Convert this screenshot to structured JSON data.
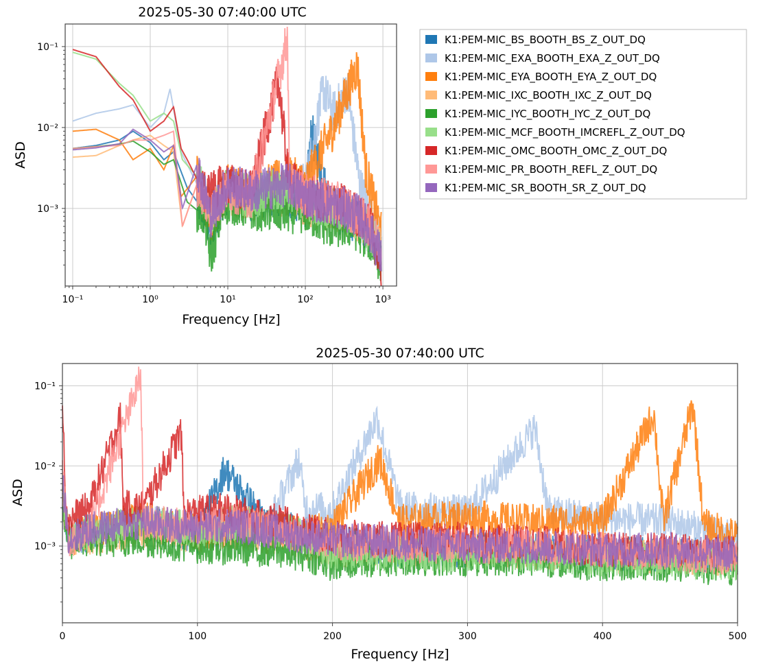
{
  "chart_data": [
    {
      "type": "line",
      "title": "2025-05-30 07:40:00 UTC",
      "xlabel": "Frequency [Hz]",
      "ylabel": "ASD",
      "xscale": "log",
      "yscale": "log",
      "xlim": [
        0.08,
        1500
      ],
      "ylim": [
        0.00011,
        0.19
      ],
      "xticks": [
        {
          "v": 0.1,
          "label": "10⁻¹"
        },
        {
          "v": 1,
          "label": "10⁰"
        },
        {
          "v": 10,
          "label": "10¹"
        },
        {
          "v": 100,
          "label": "10²"
        },
        {
          "v": 1000,
          "label": "10³"
        }
      ],
      "yticks": [
        {
          "v": 0.1,
          "label": "10⁻¹"
        },
        {
          "v": 0.01,
          "label": "10⁻²"
        },
        {
          "v": 0.001,
          "label": "10⁻³"
        }
      ],
      "grid": true,
      "legend": "right, outside",
      "series_ref": "shared_series"
    },
    {
      "type": "line",
      "title": "2025-05-30 07:40:00 UTC",
      "xlabel": "Frequency [Hz]",
      "ylabel": "ASD",
      "xscale": "linear",
      "yscale": "log",
      "xlim": [
        0,
        500
      ],
      "ylim": [
        0.00011,
        0.19
      ],
      "xticks": [
        {
          "v": 0,
          "label": "0"
        },
        {
          "v": 100,
          "label": "100"
        },
        {
          "v": 200,
          "label": "200"
        },
        {
          "v": 300,
          "label": "300"
        },
        {
          "v": 400,
          "label": "400"
        },
        {
          "v": 500,
          "label": "500"
        }
      ],
      "yticks": [
        {
          "v": 0.1,
          "label": "10⁻¹"
        },
        {
          "v": 0.01,
          "label": "10⁻²"
        },
        {
          "v": 0.001,
          "label": "10⁻³"
        }
      ],
      "grid": true,
      "series_ref": "shared_series"
    }
  ],
  "shared_series": [
    {
      "name": "K1:PEM-MIC_BS_BOOTH_BS_Z_OUT_DQ",
      "color": "#1f77b4",
      "pts": [
        [
          0.1,
          0.0055
        ],
        [
          0.2,
          0.006
        ],
        [
          0.4,
          0.007
        ],
        [
          0.6,
          0.009
        ],
        [
          1,
          0.0065
        ],
        [
          1.5,
          0.004
        ],
        [
          2,
          0.005
        ],
        [
          3,
          0.0018
        ],
        [
          5,
          0.0009
        ],
        [
          6,
          0.0005
        ],
        [
          8,
          0.0012
        ],
        [
          10,
          0.0016
        ],
        [
          20,
          0.0013
        ],
        [
          40,
          0.0015
        ],
        [
          60,
          0.0014
        ],
        [
          100,
          0.0011
        ],
        [
          120,
          0.009
        ],
        [
          200,
          0.0012
        ],
        [
          300,
          0.0008
        ],
        [
          500,
          0.0007
        ],
        [
          700,
          0.0005
        ],
        [
          950,
          0.0003
        ]
      ],
      "lin": [
        [
          0,
          0.004
        ],
        [
          5,
          0.0012
        ],
        [
          20,
          0.0015
        ],
        [
          60,
          0.002
        ],
        [
          100,
          0.0013
        ],
        [
          120,
          0.009
        ],
        [
          150,
          0.002
        ],
        [
          200,
          0.0011
        ],
        [
          250,
          0.0009
        ],
        [
          300,
          0.0009
        ],
        [
          350,
          0.0009
        ],
        [
          400,
          0.0008
        ],
        [
          450,
          0.0008
        ],
        [
          500,
          0.0007
        ]
      ]
    },
    {
      "name": "K1:PEM-MIC_EXA_BOOTH_EXA_Z_OUT_DQ",
      "color": "#aec7e8",
      "pts": [
        [
          0.1,
          0.012
        ],
        [
          0.2,
          0.015
        ],
        [
          0.4,
          0.017
        ],
        [
          0.6,
          0.019
        ],
        [
          1,
          0.01
        ],
        [
          1.5,
          0.015
        ],
        [
          1.8,
          0.03
        ],
        [
          2.5,
          0.005
        ],
        [
          4,
          0.002
        ],
        [
          6,
          0.0008
        ],
        [
          10,
          0.0018
        ],
        [
          20,
          0.0014
        ],
        [
          60,
          0.002
        ],
        [
          100,
          0.002
        ],
        [
          170,
          0.03
        ],
        [
          230,
          0.015
        ],
        [
          350,
          0.03
        ],
        [
          500,
          0.002
        ],
        [
          700,
          0.0008
        ],
        [
          950,
          0.0004
        ]
      ],
      "lin": [
        [
          0,
          0.003
        ],
        [
          5,
          0.0012
        ],
        [
          20,
          0.0014
        ],
        [
          60,
          0.002
        ],
        [
          100,
          0.0015
        ],
        [
          150,
          0.0015
        ],
        [
          175,
          0.012
        ],
        [
          180,
          0.003
        ],
        [
          200,
          0.0028
        ],
        [
          233,
          0.04
        ],
        [
          250,
          0.003
        ],
        [
          300,
          0.0026
        ],
        [
          350,
          0.03
        ],
        [
          360,
          0.0026
        ],
        [
          400,
          0.0022
        ],
        [
          450,
          0.002
        ],
        [
          500,
          0.0012
        ]
      ]
    },
    {
      "name": "K1:PEM-MIC_EYA_BOOTH_EYA_Z_OUT_DQ",
      "color": "#ff7f0e",
      "pts": [
        [
          0.1,
          0.009
        ],
        [
          0.2,
          0.0095
        ],
        [
          0.4,
          0.007
        ],
        [
          0.6,
          0.004
        ],
        [
          1,
          0.0055
        ],
        [
          1.5,
          0.003
        ],
        [
          2,
          0.006
        ],
        [
          2.5,
          0.0014
        ],
        [
          4,
          0.0025
        ],
        [
          6,
          0.0006
        ],
        [
          10,
          0.002
        ],
        [
          20,
          0.0015
        ],
        [
          60,
          0.0025
        ],
        [
          100,
          0.002
        ],
        [
          230,
          0.01
        ],
        [
          440,
          0.05
        ],
        [
          470,
          0.06
        ],
        [
          600,
          0.003
        ],
        [
          800,
          0.001
        ],
        [
          950,
          0.0005
        ]
      ],
      "lin": [
        [
          0,
          0.004
        ],
        [
          5,
          0.0012
        ],
        [
          20,
          0.0015
        ],
        [
          60,
          0.0022
        ],
        [
          100,
          0.0015
        ],
        [
          150,
          0.0016
        ],
        [
          180,
          0.0014
        ],
        [
          200,
          0.0017
        ],
        [
          235,
          0.012
        ],
        [
          250,
          0.002
        ],
        [
          300,
          0.0023
        ],
        [
          350,
          0.002
        ],
        [
          400,
          0.002
        ],
        [
          438,
          0.045
        ],
        [
          445,
          0.002
        ],
        [
          467,
          0.06
        ],
        [
          475,
          0.0018
        ],
        [
          500,
          0.0013
        ]
      ]
    },
    {
      "name": "K1:PEM-MIC_IXC_BOOTH_IXC_Z_OUT_DQ",
      "color": "#ffbb78",
      "pts": [
        [
          0.1,
          0.0043
        ],
        [
          0.2,
          0.0045
        ],
        [
          0.4,
          0.006
        ],
        [
          0.6,
          0.007
        ],
        [
          1,
          0.008
        ],
        [
          1.5,
          0.006
        ],
        [
          2,
          0.005
        ],
        [
          2.6,
          0.0006
        ],
        [
          4,
          0.002
        ],
        [
          6,
          0.0009
        ],
        [
          10,
          0.0015
        ],
        [
          20,
          0.0013
        ],
        [
          60,
          0.0015
        ],
        [
          100,
          0.0011
        ],
        [
          300,
          0.0009
        ],
        [
          500,
          0.0007
        ],
        [
          700,
          0.0005
        ],
        [
          950,
          0.0003
        ]
      ],
      "lin": [
        [
          0,
          0.003
        ],
        [
          5,
          0.0012
        ],
        [
          20,
          0.0013
        ],
        [
          60,
          0.0016
        ],
        [
          100,
          0.0013
        ],
        [
          130,
          0.0015
        ],
        [
          170,
          0.0012
        ],
        [
          200,
          0.0009
        ],
        [
          300,
          0.0009
        ],
        [
          400,
          0.0008
        ],
        [
          500,
          0.0007
        ]
      ]
    },
    {
      "name": "K1:PEM-MIC_IYC_BOOTH_IYC_Z_OUT_DQ",
      "color": "#2ca02c",
      "pts": [
        [
          0.1,
          0.0055
        ],
        [
          0.2,
          0.0058
        ],
        [
          0.4,
          0.0062
        ],
        [
          0.6,
          0.0068
        ],
        [
          1,
          0.005
        ],
        [
          1.5,
          0.0035
        ],
        [
          2,
          0.004
        ],
        [
          3,
          0.0012
        ],
        [
          5,
          0.0008
        ],
        [
          6,
          0.00025
        ],
        [
          8,
          0.0008
        ],
        [
          10,
          0.0012
        ],
        [
          20,
          0.001
        ],
        [
          60,
          0.0009
        ],
        [
          100,
          0.0009
        ],
        [
          200,
          0.0006
        ],
        [
          400,
          0.0006
        ],
        [
          700,
          0.0004
        ],
        [
          950,
          0.0002
        ]
      ],
      "lin": [
        [
          0,
          0.003
        ],
        [
          5,
          0.0011
        ],
        [
          20,
          0.0012
        ],
        [
          60,
          0.0012
        ],
        [
          100,
          0.001
        ],
        [
          150,
          0.0009
        ],
        [
          180,
          0.0008
        ],
        [
          200,
          0.0006
        ],
        [
          250,
          0.0007
        ],
        [
          300,
          0.0007
        ],
        [
          350,
          0.0007
        ],
        [
          400,
          0.0006
        ],
        [
          450,
          0.0006
        ],
        [
          500,
          0.0005
        ]
      ]
    },
    {
      "name": "K1:PEM-MIC_MCF_BOOTH_IMCREFL_Z_OUT_DQ",
      "color": "#98df8a",
      "pts": [
        [
          0.1,
          0.085
        ],
        [
          0.2,
          0.07
        ],
        [
          0.4,
          0.035
        ],
        [
          0.6,
          0.025
        ],
        [
          1,
          0.012
        ],
        [
          1.5,
          0.015
        ],
        [
          2,
          0.012
        ],
        [
          2.6,
          0.004
        ],
        [
          4,
          0.0025
        ],
        [
          6,
          0.0009
        ],
        [
          10,
          0.0017
        ],
        [
          20,
          0.0014
        ],
        [
          60,
          0.0018
        ],
        [
          100,
          0.0013
        ],
        [
          300,
          0.0009
        ],
        [
          500,
          0.0007
        ],
        [
          700,
          0.0005
        ],
        [
          950,
          0.0003
        ]
      ],
      "lin": [
        [
          0,
          0.005
        ],
        [
          5,
          0.0013
        ],
        [
          20,
          0.0015
        ],
        [
          60,
          0.002
        ],
        [
          100,
          0.0016
        ],
        [
          130,
          0.002
        ],
        [
          170,
          0.0015
        ],
        [
          200,
          0.0008
        ],
        [
          250,
          0.0008
        ],
        [
          300,
          0.0008
        ],
        [
          350,
          0.0008
        ],
        [
          400,
          0.0007
        ],
        [
          450,
          0.0007
        ],
        [
          500,
          0.0006
        ]
      ]
    },
    {
      "name": "K1:PEM-MIC_OMC_BOOTH_OMC_Z_OUT_DQ",
      "color": "#d62728",
      "pts": [
        [
          0.1,
          0.092
        ],
        [
          0.2,
          0.075
        ],
        [
          0.4,
          0.032
        ],
        [
          0.6,
          0.022
        ],
        [
          1,
          0.009
        ],
        [
          1.5,
          0.012
        ],
        [
          2,
          0.018
        ],
        [
          2.5,
          0.0055
        ],
        [
          3,
          0.004
        ],
        [
          5,
          0.0015
        ],
        [
          10,
          0.002
        ],
        [
          20,
          0.0016
        ],
        [
          45,
          0.04
        ],
        [
          60,
          0.0025
        ],
        [
          100,
          0.0014
        ],
        [
          300,
          0.0011
        ],
        [
          500,
          0.0008
        ],
        [
          700,
          0.0006
        ],
        [
          950,
          0.00016
        ]
      ],
      "lin": [
        [
          0,
          0.09
        ],
        [
          3,
          0.002
        ],
        [
          20,
          0.003
        ],
        [
          43,
          0.04
        ],
        [
          45,
          0.003
        ],
        [
          60,
          0.003
        ],
        [
          88,
          0.026
        ],
        [
          90,
          0.0025
        ],
        [
          120,
          0.0028
        ],
        [
          150,
          0.0022
        ],
        [
          200,
          0.0013
        ],
        [
          250,
          0.0012
        ],
        [
          300,
          0.0012
        ],
        [
          350,
          0.0011
        ],
        [
          400,
          0.0009
        ],
        [
          450,
          0.0009
        ],
        [
          500,
          0.0008
        ]
      ]
    },
    {
      "name": "K1:PEM-MIC_PR_BOOTH_REFL_Z_OUT_DQ",
      "color": "#ff9896",
      "pts": [
        [
          0.1,
          0.0055
        ],
        [
          0.2,
          0.0058
        ],
        [
          0.4,
          0.006
        ],
        [
          0.6,
          0.007
        ],
        [
          1,
          0.007
        ],
        [
          1.5,
          0.008
        ],
        [
          2,
          0.009
        ],
        [
          2.6,
          0.0006
        ],
        [
          4,
          0.002
        ],
        [
          6,
          0.0009
        ],
        [
          10,
          0.0017
        ],
        [
          20,
          0.0014
        ],
        [
          59,
          0.13
        ],
        [
          62,
          0.002
        ],
        [
          100,
          0.0015
        ],
        [
          300,
          0.0011
        ],
        [
          500,
          0.0008
        ],
        [
          700,
          0.0006
        ],
        [
          950,
          0.0003
        ]
      ],
      "lin": [
        [
          0,
          0.01
        ],
        [
          5,
          0.0012
        ],
        [
          20,
          0.0016
        ],
        [
          58,
          0.13
        ],
        [
          60,
          0.002
        ],
        [
          100,
          0.0017
        ],
        [
          130,
          0.002
        ],
        [
          170,
          0.0015
        ],
        [
          200,
          0.0011
        ],
        [
          250,
          0.001
        ],
        [
          300,
          0.001
        ],
        [
          350,
          0.001
        ],
        [
          400,
          0.0009
        ],
        [
          450,
          0.0008
        ],
        [
          500,
          0.0007
        ]
      ]
    },
    {
      "name": "K1:PEM-MIC_SR_BOOTH_SR_Z_OUT_DQ",
      "color": "#9467bd",
      "pts": [
        [
          0.1,
          0.0053
        ],
        [
          0.2,
          0.0056
        ],
        [
          0.4,
          0.0063
        ],
        [
          0.6,
          0.0095
        ],
        [
          1,
          0.007
        ],
        [
          1.5,
          0.005
        ],
        [
          2,
          0.006
        ],
        [
          2.6,
          0.001
        ],
        [
          4,
          0.0035
        ],
        [
          6,
          0.0008
        ],
        [
          10,
          0.002
        ],
        [
          20,
          0.0016
        ],
        [
          60,
          0.002
        ],
        [
          100,
          0.0014
        ],
        [
          300,
          0.001
        ],
        [
          500,
          0.0008
        ],
        [
          700,
          0.0005
        ],
        [
          950,
          0.00025
        ]
      ],
      "lin": [
        [
          0,
          0.006
        ],
        [
          5,
          0.0012
        ],
        [
          20,
          0.0016
        ],
        [
          60,
          0.002
        ],
        [
          100,
          0.0017
        ],
        [
          130,
          0.0018
        ],
        [
          170,
          0.0014
        ],
        [
          200,
          0.0012
        ],
        [
          250,
          0.0011
        ],
        [
          300,
          0.001
        ],
        [
          350,
          0.001
        ],
        [
          400,
          0.0009
        ],
        [
          450,
          0.0009
        ],
        [
          500,
          0.0008
        ]
      ]
    }
  ]
}
